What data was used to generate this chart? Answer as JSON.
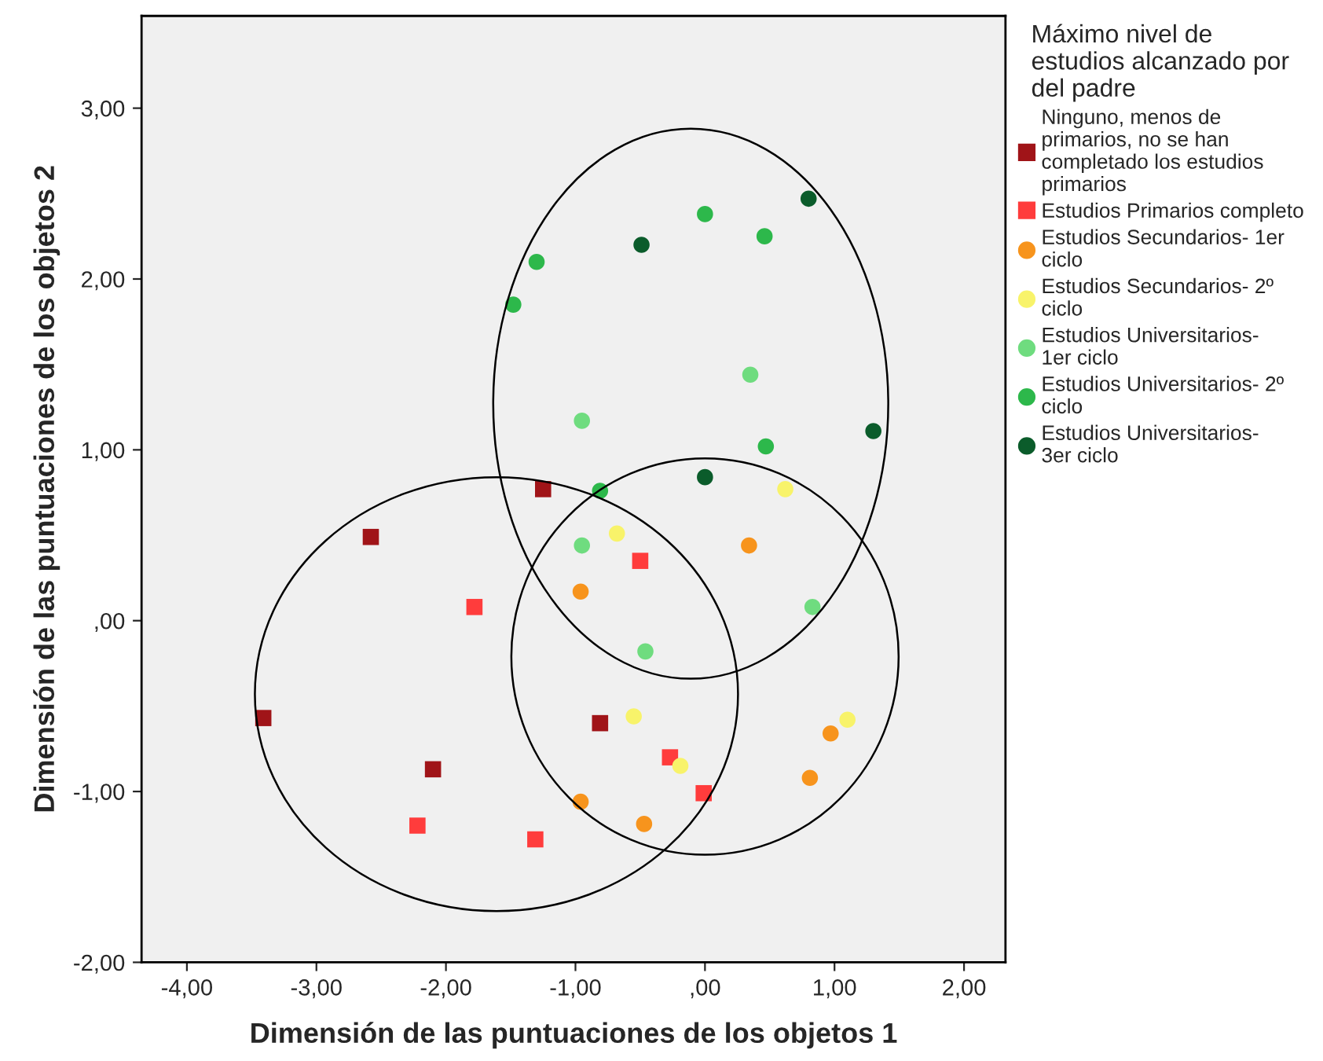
{
  "chart_data": {
    "type": "scatter",
    "xlabel": "Dimensión de las puntuaciones de los objetos 1",
    "ylabel": "Dimensión de las puntuaciones de los objetos 2",
    "legend_title": "Máximo nivel de estudios alcanzado por del padre",
    "legend": "right",
    "grid": false,
    "xlim": [
      -4.35,
      2.32
    ],
    "ylim": [
      -2.0,
      3.54
    ],
    "xticks": [
      {
        "value": -4,
        "label": "-4,00"
      },
      {
        "value": -3,
        "label": "-3,00"
      },
      {
        "value": -2,
        "label": "-2,00"
      },
      {
        "value": -1,
        "label": "-1,00"
      },
      {
        "value": 0,
        "label": ",00"
      },
      {
        "value": 1,
        "label": "1,00"
      },
      {
        "value": 2,
        "label": "2,00"
      }
    ],
    "yticks": [
      {
        "value": -2,
        "label": "-2,00"
      },
      {
        "value": -1,
        "label": "-1,00"
      },
      {
        "value": 0,
        "label": ",00"
      },
      {
        "value": 1,
        "label": "1,00"
      },
      {
        "value": 2,
        "label": "2,00"
      },
      {
        "value": 3,
        "label": "3,00"
      }
    ],
    "series": [
      {
        "name": "Ninguno, menos de primarios, no se han completado los estudios primarios",
        "color": "#a01418",
        "marker": "square",
        "x": [
          -1.25,
          -2.58,
          -3.41,
          -0.81,
          -2.1
        ],
        "values": [
          0.77,
          0.49,
          -0.57,
          -0.6,
          -0.87
        ]
      },
      {
        "name": "Estudios Primarios completo",
        "color": "#ff3c3c",
        "marker": "square",
        "x": [
          -1.78,
          -0.5,
          -2.22,
          -1.31,
          -0.27,
          -0.01
        ],
        "values": [
          0.08,
          0.35,
          -1.2,
          -1.28,
          -0.8,
          -1.01
        ]
      },
      {
        "name": "Estudios Secundarios- 1er ciclo",
        "color": "#f7941d",
        "marker": "circle",
        "x": [
          -0.96,
          0.34,
          -0.96,
          -0.47,
          0.97,
          0.81
        ],
        "values": [
          0.17,
          0.44,
          -1.06,
          -1.19,
          -0.66,
          -0.92
        ]
      },
      {
        "name": "Estudios Secundarios- 2º ciclo",
        "color": "#f8f36a",
        "marker": "circle",
        "x": [
          -0.68,
          0.62,
          -0.55,
          -0.19,
          1.1
        ],
        "values": [
          0.51,
          0.77,
          -0.56,
          -0.85,
          -0.58
        ]
      },
      {
        "name": "Estudios Universitarios- 1er ciclo",
        "color": "#6fdc7f",
        "marker": "circle",
        "x": [
          -0.95,
          -0.46,
          -0.95,
          0.35,
          0.83
        ],
        "values": [
          0.44,
          -0.18,
          1.17,
          1.44,
          0.08
        ]
      },
      {
        "name": "Estudios Universitarios- 2º ciclo",
        "color": "#2db84b",
        "marker": "circle",
        "x": [
          -1.48,
          -1.3,
          0.0,
          0.46,
          0.47,
          -0.81
        ],
        "values": [
          1.85,
          2.1,
          2.38,
          2.25,
          1.02,
          0.76
        ]
      },
      {
        "name": "Estudios Universitarios- 3er ciclo",
        "color": "#0b5c2b",
        "marker": "circle",
        "x": [
          -0.49,
          0.8,
          1.3,
          0.0
        ],
        "values": [
          2.2,
          2.47,
          1.11,
          0.84
        ]
      }
    ]
  }
}
